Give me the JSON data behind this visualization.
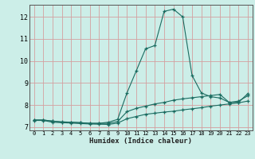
{
  "title": "",
  "xlabel": "Humidex (Indice chaleur)",
  "x": [
    0,
    1,
    2,
    3,
    4,
    5,
    6,
    7,
    8,
    9,
    10,
    11,
    12,
    13,
    14,
    15,
    16,
    17,
    18,
    19,
    20,
    21,
    22,
    23
  ],
  "y_min": [
    7.3,
    7.3,
    7.22,
    7.2,
    7.18,
    7.16,
    7.14,
    7.13,
    7.12,
    7.18,
    7.38,
    7.48,
    7.58,
    7.63,
    7.68,
    7.72,
    7.78,
    7.83,
    7.88,
    7.95,
    8.0,
    8.05,
    8.1,
    8.18
  ],
  "y_mean": [
    7.32,
    7.32,
    7.27,
    7.22,
    7.22,
    7.2,
    7.17,
    7.17,
    7.17,
    7.25,
    7.7,
    7.85,
    7.95,
    8.05,
    8.12,
    8.22,
    8.28,
    8.33,
    8.38,
    8.43,
    8.48,
    8.12,
    8.18,
    8.42
  ],
  "y_max": [
    7.32,
    7.32,
    7.27,
    7.24,
    7.22,
    7.2,
    7.17,
    7.17,
    7.22,
    7.35,
    8.55,
    9.55,
    10.55,
    10.7,
    12.25,
    12.35,
    12.0,
    9.35,
    8.55,
    8.38,
    8.32,
    8.12,
    8.12,
    8.52
  ],
  "bg_color": "#cceee8",
  "line_color": "#1a6b60",
  "grid_color": "#d4a0a0",
  "xlim": [
    -0.5,
    23.5
  ],
  "ylim": [
    6.85,
    12.55
  ],
  "yticks": [
    7,
    8,
    9,
    10,
    11,
    12
  ],
  "xticks": [
    0,
    1,
    2,
    3,
    4,
    5,
    6,
    7,
    8,
    9,
    10,
    11,
    12,
    13,
    14,
    15,
    16,
    17,
    18,
    19,
    20,
    21,
    22,
    23
  ]
}
